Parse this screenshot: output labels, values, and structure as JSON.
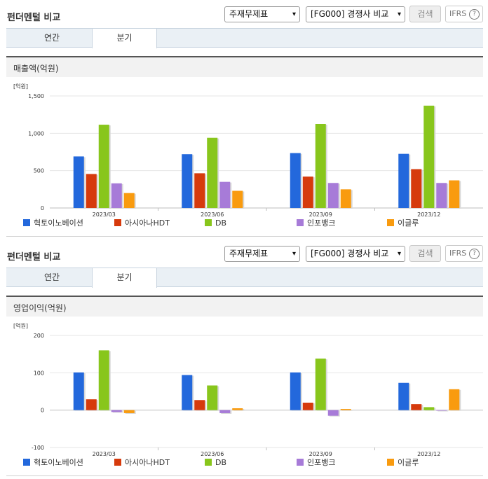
{
  "panels": [
    {
      "title": "펀더멘털 비교",
      "select_statement": "주재무제표",
      "select_compare": "[FG000] 경쟁사 비교",
      "search_label": "검색",
      "ifrs_label": "IFRS",
      "help_glyph": "?",
      "tabs": [
        "연간",
        "분기"
      ],
      "active_tab": "분기",
      "section_title": "매출액(억원)"
    },
    {
      "title": "펀더멘털 비교",
      "select_statement": "주재무제표",
      "select_compare": "[FG000] 경쟁사 비교",
      "search_label": "검색",
      "ifrs_label": "IFRS",
      "help_glyph": "?",
      "tabs": [
        "연간",
        "분기"
      ],
      "active_tab": "분기",
      "section_title": "영업이익(억원)"
    }
  ],
  "colors": [
    "#2368dc",
    "#d63a0c",
    "#88c61c",
    "#a77bd8",
    "#f99b0f"
  ],
  "icons": {
    "select": "chevron-down-icon",
    "help": "question-circle-icon"
  },
  "chart_data": [
    {
      "type": "bar",
      "unit_label": "[억원]",
      "categories": [
        "2023/03",
        "2023/06",
        "2023/09",
        "2023/12"
      ],
      "ylim": [
        0,
        1500
      ],
      "yticks": [
        0,
        500,
        1000,
        1500
      ],
      "ytick_labels": [
        "0",
        "500",
        "1,000",
        "1,500"
      ],
      "legend_position": "bottom",
      "series": [
        {
          "name": "혁토이노베이션",
          "values": [
            690,
            720,
            735,
            725
          ]
        },
        {
          "name": "아시아나HDT",
          "values": [
            455,
            465,
            420,
            520
          ]
        },
        {
          "name": "DB",
          "values": [
            1115,
            940,
            1125,
            1370
          ]
        },
        {
          "name": "인포뱅크",
          "values": [
            330,
            350,
            335,
            335
          ]
        },
        {
          "name": "이글루",
          "values": [
            200,
            230,
            250,
            370
          ]
        }
      ]
    },
    {
      "type": "bar",
      "unit_label": "[억원]",
      "categories": [
        "2023/03",
        "2023/06",
        "2023/09",
        "2023/12"
      ],
      "ylim": [
        -100,
        200
      ],
      "yticks": [
        -100,
        0,
        100,
        200
      ],
      "ytick_labels": [
        "-100",
        "0",
        "100",
        "200"
      ],
      "legend_position": "bottom",
      "series": [
        {
          "name": "혁토이노베이션",
          "values": [
            101,
            94,
            101,
            73
          ]
        },
        {
          "name": "아시아나HDT",
          "values": [
            29,
            27,
            20,
            16
          ]
        },
        {
          "name": "DB",
          "values": [
            160,
            66,
            138,
            8
          ]
        },
        {
          "name": "인포뱅크",
          "values": [
            -5,
            -8,
            -15,
            0
          ]
        },
        {
          "name": "이글루",
          "values": [
            -8,
            5,
            3,
            56
          ]
        }
      ]
    }
  ]
}
